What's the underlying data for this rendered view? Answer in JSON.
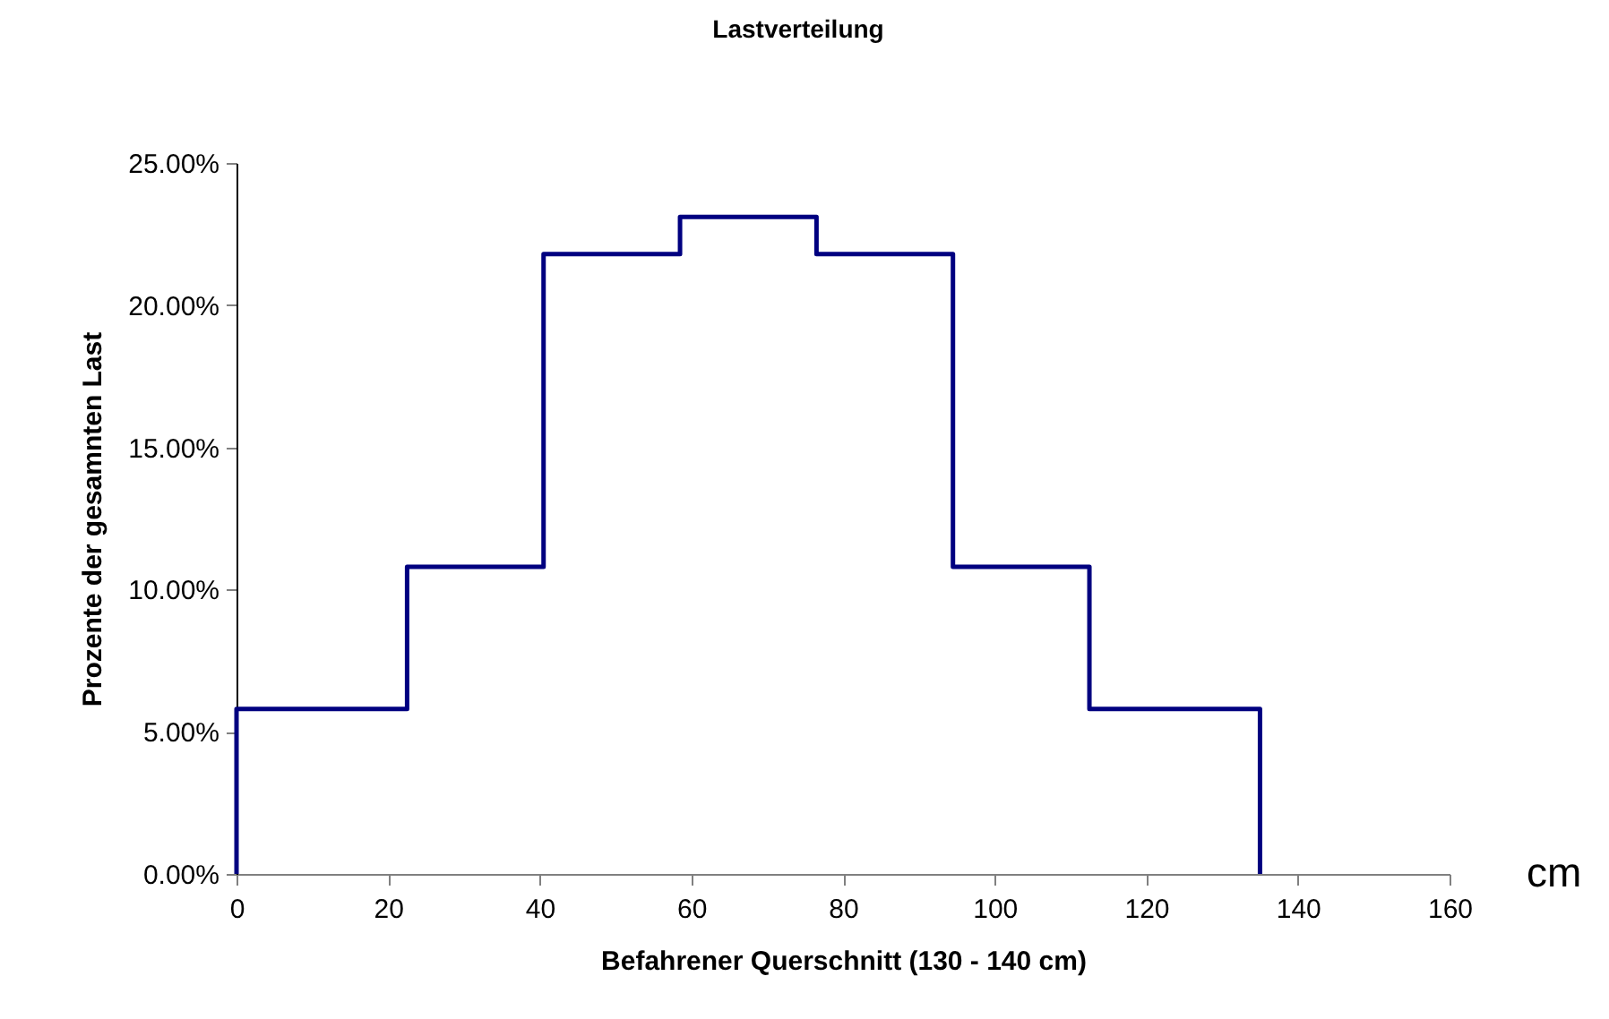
{
  "chart_data": {
    "type": "step",
    "title": "Lastverteilung",
    "xlabel": "Befahrener Querschnitt (130 - 140 cm)",
    "ylabel": "Prozente der gesamnten Last",
    "annotations": [
      "cm"
    ],
    "series": [
      {
        "color": "#000080",
        "x": [
          0,
          0,
          22.5,
          40.5,
          58.5,
          76.5,
          94.5,
          112.5,
          135
        ],
        "values": [
          0,
          5.8,
          10.8,
          21.8,
          23.1,
          21.8,
          10.8,
          5.8,
          0
        ]
      }
    ],
    "xlim": [
      0,
      160
    ],
    "xticks": [
      0,
      20,
      40,
      60,
      80,
      100,
      120,
      140,
      160
    ],
    "ylim": [
      0,
      25
    ],
    "yticks": [
      {
        "value": 0,
        "label": "0.00%"
      },
      {
        "value": 5,
        "label": "5.00%"
      },
      {
        "value": 10,
        "label": "10.00%"
      },
      {
        "value": 15,
        "label": "15.00%"
      },
      {
        "value": 20,
        "label": "20.00%"
      },
      {
        "value": 25,
        "label": "25.00%"
      }
    ],
    "grid": false
  }
}
